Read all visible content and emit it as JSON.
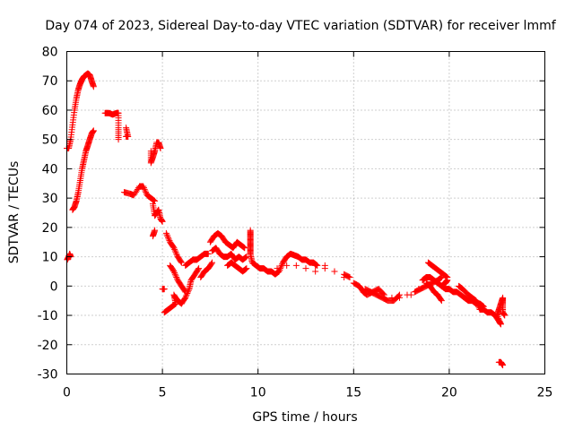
{
  "chart_data": {
    "type": "scatter",
    "title": "Day 074 of 2023, Sidereal Day-to-day VTEC variation (SDTVAR) for receiver lmmf",
    "xlabel": "GPS time / hours",
    "ylabel": "SDTVAR / TECUs",
    "xlim": [
      0,
      25
    ],
    "ylim": [
      -30,
      80
    ],
    "xticks": [
      0,
      5,
      10,
      15,
      20,
      25
    ],
    "yticks": [
      -30,
      -20,
      -10,
      0,
      10,
      20,
      30,
      40,
      50,
      60,
      70,
      80
    ],
    "grid": true,
    "marker": "+",
    "color": "#ff0000",
    "series": [
      {
        "name": "SDTVAR",
        "points": [
          [
            0.0,
            47
          ],
          [
            0.1,
            47
          ],
          [
            0.2,
            50
          ],
          [
            0.3,
            55
          ],
          [
            0.4,
            60
          ],
          [
            0.5,
            64
          ],
          [
            0.6,
            67
          ],
          [
            0.7,
            69
          ],
          [
            0.8,
            70.5
          ],
          [
            0.9,
            71.5
          ],
          [
            1.0,
            72
          ],
          [
            1.1,
            72.5
          ],
          [
            1.2,
            72
          ],
          [
            1.3,
            70
          ],
          [
            1.4,
            68
          ],
          [
            0.02,
            9
          ],
          [
            0.1,
            10
          ],
          [
            0.15,
            11
          ],
          [
            0.2,
            10
          ],
          [
            0.3,
            26
          ],
          [
            0.4,
            27
          ],
          [
            0.5,
            29
          ],
          [
            0.6,
            32
          ],
          [
            0.7,
            36
          ],
          [
            0.8,
            40
          ],
          [
            0.9,
            43
          ],
          [
            1.0,
            46
          ],
          [
            1.1,
            48
          ],
          [
            1.2,
            50
          ],
          [
            1.3,
            52
          ],
          [
            1.4,
            53
          ],
          [
            2.0,
            59
          ],
          [
            2.2,
            59
          ],
          [
            2.4,
            58.5
          ],
          [
            2.6,
            59
          ],
          [
            2.7,
            59
          ],
          [
            2.7,
            54
          ],
          [
            2.7,
            50
          ],
          [
            3.1,
            51
          ],
          [
            3.2,
            51
          ],
          [
            3.1,
            54
          ],
          [
            3.0,
            32
          ],
          [
            3.3,
            31.5
          ],
          [
            3.5,
            31
          ],
          [
            3.8,
            34
          ],
          [
            4.0,
            34
          ],
          [
            4.2,
            31
          ],
          [
            4.4,
            30
          ],
          [
            4.6,
            29
          ],
          [
            4.4,
            46
          ],
          [
            4.4,
            42
          ],
          [
            4.5,
            44
          ],
          [
            4.6,
            46
          ],
          [
            4.7,
            49
          ],
          [
            4.8,
            49
          ],
          [
            4.9,
            47
          ],
          [
            4.5,
            28
          ],
          [
            4.6,
            24
          ],
          [
            4.7,
            25
          ],
          [
            4.8,
            26
          ],
          [
            4.9,
            23
          ],
          [
            5.0,
            22
          ],
          [
            4.6,
            19
          ],
          [
            4.5,
            17
          ],
          [
            5.2,
            18
          ],
          [
            5.4,
            15
          ],
          [
            5.6,
            13
          ],
          [
            5.8,
            10
          ],
          [
            6.0,
            8
          ],
          [
            5.0,
            -1
          ],
          [
            5.1,
            -1
          ],
          [
            5.1,
            -9
          ],
          [
            5.3,
            -8
          ],
          [
            5.5,
            -7
          ],
          [
            5.7,
            -6
          ],
          [
            5.6,
            -3
          ],
          [
            5.8,
            -5
          ],
          [
            6.0,
            -6
          ],
          [
            6.2,
            -4
          ],
          [
            6.4,
            -1
          ],
          [
            6.5,
            2
          ],
          [
            6.7,
            4
          ],
          [
            6.9,
            6
          ],
          [
            5.4,
            7
          ],
          [
            5.6,
            5
          ],
          [
            5.8,
            2
          ],
          [
            6.0,
            0
          ],
          [
            6.2,
            -2
          ],
          [
            6.2,
            7
          ],
          [
            6.4,
            8
          ],
          [
            6.6,
            9
          ],
          [
            6.8,
            9
          ],
          [
            7.0,
            10
          ],
          [
            7.2,
            11
          ],
          [
            7.4,
            11
          ],
          [
            7.0,
            3
          ],
          [
            7.2,
            5
          ],
          [
            7.4,
            6
          ],
          [
            7.6,
            8
          ],
          [
            7.5,
            15
          ],
          [
            7.7,
            17
          ],
          [
            7.9,
            18
          ],
          [
            8.1,
            17
          ],
          [
            8.3,
            15
          ],
          [
            8.5,
            14
          ],
          [
            8.7,
            13
          ],
          [
            8.9,
            15
          ],
          [
            9.1,
            14
          ],
          [
            9.3,
            13
          ],
          [
            7.6,
            12
          ],
          [
            7.8,
            13
          ],
          [
            8.0,
            11
          ],
          [
            8.2,
            10
          ],
          [
            8.4,
            10
          ],
          [
            8.6,
            11
          ],
          [
            8.8,
            9
          ],
          [
            9.0,
            10
          ],
          [
            9.2,
            9
          ],
          [
            9.4,
            10
          ],
          [
            8.4,
            7
          ],
          [
            8.6,
            8
          ],
          [
            8.8,
            7
          ],
          [
            9.0,
            6
          ],
          [
            9.2,
            5
          ],
          [
            9.4,
            6
          ],
          [
            9.6,
            19
          ],
          [
            9.6,
            17
          ],
          [
            9.6,
            15
          ],
          [
            9.6,
            13
          ],
          [
            9.6,
            11
          ],
          [
            9.7,
            8
          ],
          [
            9.9,
            7
          ],
          [
            10.1,
            6
          ],
          [
            10.3,
            6
          ],
          [
            10.5,
            5
          ],
          [
            10.7,
            5
          ],
          [
            10.9,
            4
          ],
          [
            11.1,
            5
          ],
          [
            11.3,
            8
          ],
          [
            11.5,
            10
          ],
          [
            11.7,
            11
          ],
          [
            11.9,
            10.5
          ],
          [
            12.1,
            10
          ],
          [
            12.3,
            9
          ],
          [
            12.5,
            9
          ],
          [
            12.7,
            8
          ],
          [
            12.9,
            8
          ],
          [
            13.1,
            7
          ],
          [
            11.0,
            6
          ],
          [
            11.5,
            7
          ],
          [
            12.0,
            7
          ],
          [
            12.5,
            6
          ],
          [
            13.0,
            5
          ],
          [
            13.5,
            6
          ],
          [
            14.0,
            5
          ],
          [
            14.5,
            4
          ],
          [
            14.8,
            3
          ],
          [
            13.0,
            7
          ],
          [
            13.5,
            7
          ],
          [
            14.0,
            5
          ],
          [
            14.5,
            3
          ],
          [
            15.0,
            1
          ],
          [
            15.3,
            0
          ],
          [
            15.5,
            -2
          ],
          [
            15.7,
            -3
          ],
          [
            16.0,
            -2
          ],
          [
            16.3,
            -1
          ],
          [
            16.6,
            -3
          ],
          [
            17.0,
            -4
          ],
          [
            17.4,
            -4
          ],
          [
            17.8,
            -3
          ],
          [
            18.2,
            -2
          ],
          [
            18.5,
            -1
          ],
          [
            18.8,
            0
          ],
          [
            19.1,
            1
          ],
          [
            19.4,
            2
          ],
          [
            19.6,
            3
          ],
          [
            15.6,
            -1
          ],
          [
            15.9,
            -2
          ],
          [
            16.2,
            -3
          ],
          [
            16.5,
            -4
          ],
          [
            16.8,
            -5
          ],
          [
            17.1,
            -5
          ],
          [
            17.4,
            -3
          ],
          [
            18.0,
            -3
          ],
          [
            18.4,
            -1
          ],
          [
            18.8,
            1
          ],
          [
            19.0,
            0
          ],
          [
            19.2,
            -2
          ],
          [
            19.4,
            -3
          ],
          [
            19.6,
            -5
          ],
          [
            18.9,
            8
          ],
          [
            19.1,
            7
          ],
          [
            19.3,
            6
          ],
          [
            19.5,
            5
          ],
          [
            19.7,
            4
          ],
          [
            19.9,
            3
          ],
          [
            18.6,
            2
          ],
          [
            18.8,
            3
          ],
          [
            19.0,
            3
          ],
          [
            19.2,
            2
          ],
          [
            19.4,
            1
          ],
          [
            19.6,
            0
          ],
          [
            19.8,
            1
          ],
          [
            19.9,
            2
          ],
          [
            19.6,
            0
          ],
          [
            19.8,
            -1
          ],
          [
            20.0,
            -1
          ],
          [
            20.2,
            -2
          ],
          [
            20.4,
            -2
          ],
          [
            20.6,
            -3
          ],
          [
            20.8,
            -4
          ],
          [
            21.0,
            -5
          ],
          [
            21.2,
            -5
          ],
          [
            21.4,
            -6
          ],
          [
            21.6,
            -6
          ],
          [
            21.8,
            -7
          ],
          [
            20.5,
            0
          ],
          [
            20.7,
            -1
          ],
          [
            21.0,
            -3
          ],
          [
            21.2,
            -4
          ],
          [
            21.4,
            -5
          ],
          [
            21.6,
            -8
          ],
          [
            21.8,
            -8
          ],
          [
            22.0,
            -9
          ],
          [
            22.2,
            -9
          ],
          [
            22.4,
            -10
          ],
          [
            22.6,
            -12
          ],
          [
            22.7,
            -13
          ],
          [
            22.5,
            -10
          ],
          [
            22.6,
            -8
          ],
          [
            22.7,
            -6
          ],
          [
            22.8,
            -4
          ],
          [
            22.8,
            -6
          ],
          [
            22.8,
            -9
          ],
          [
            22.9,
            -10
          ],
          [
            22.6,
            -26
          ],
          [
            22.7,
            -26
          ],
          [
            22.8,
            -27
          ]
        ]
      }
    ]
  }
}
